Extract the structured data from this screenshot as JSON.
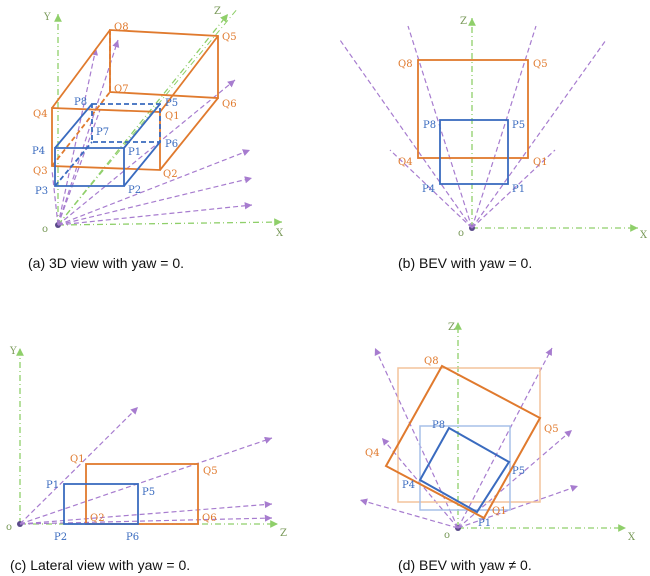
{
  "colors": {
    "blue": "#3a6bbf",
    "orange": "#e07a2e",
    "orangeLight": "#f3c39c",
    "blueLight": "#a7c0e8",
    "axis": "#8fcf6a",
    "ray": "#a77ccf"
  },
  "panels": {
    "a": {
      "caption": "(a) 3D view with yaw = 0.",
      "axes": {
        "x": "X",
        "y": "Y",
        "z": "Z",
        "origin": "o"
      },
      "labels": {
        "q8": "Q8",
        "q7": "Q7",
        "q5": "Q5",
        "q6": "Q6",
        "q4": "Q4",
        "q1": "Q1",
        "q3": "Q3",
        "q2": "Q2",
        "p8": "P8",
        "p5": "P5",
        "p7": "P7",
        "p6": "P6",
        "p4": "P4",
        "p1": "P1",
        "p3": "P3",
        "p2": "P2"
      }
    },
    "b": {
      "caption": "(b) BEV with yaw = 0.",
      "axes": {
        "z": "Z",
        "x": "X",
        "origin": "o"
      },
      "labels": {
        "q8": "Q8",
        "q5": "Q5",
        "q4": "Q4",
        "q1": "Q1",
        "p8": "P8",
        "p5": "P5",
        "p4": "P4",
        "p1": "P1"
      }
    },
    "c": {
      "caption": "(c) Lateral view with yaw = 0.",
      "axes": {
        "y": "Y",
        "z": "Z",
        "origin": "o"
      },
      "labels": {
        "q1": "Q1",
        "q5": "Q5",
        "q2": "Q2",
        "q6": "Q6",
        "p1": "P1",
        "p5": "P5",
        "p2": "P2",
        "p6": "P6"
      }
    },
    "d": {
      "caption": "(d) BEV with yaw ≠ 0.",
      "axes": {
        "z": "Z",
        "x": "X",
        "origin": "o"
      },
      "labels": {
        "q8": "Q8",
        "q5": "Q5",
        "q4": "Q4",
        "q1": "Q1",
        "p8": "P8",
        "p5": "P5",
        "p4": "P4",
        "p1": "P1"
      }
    }
  }
}
